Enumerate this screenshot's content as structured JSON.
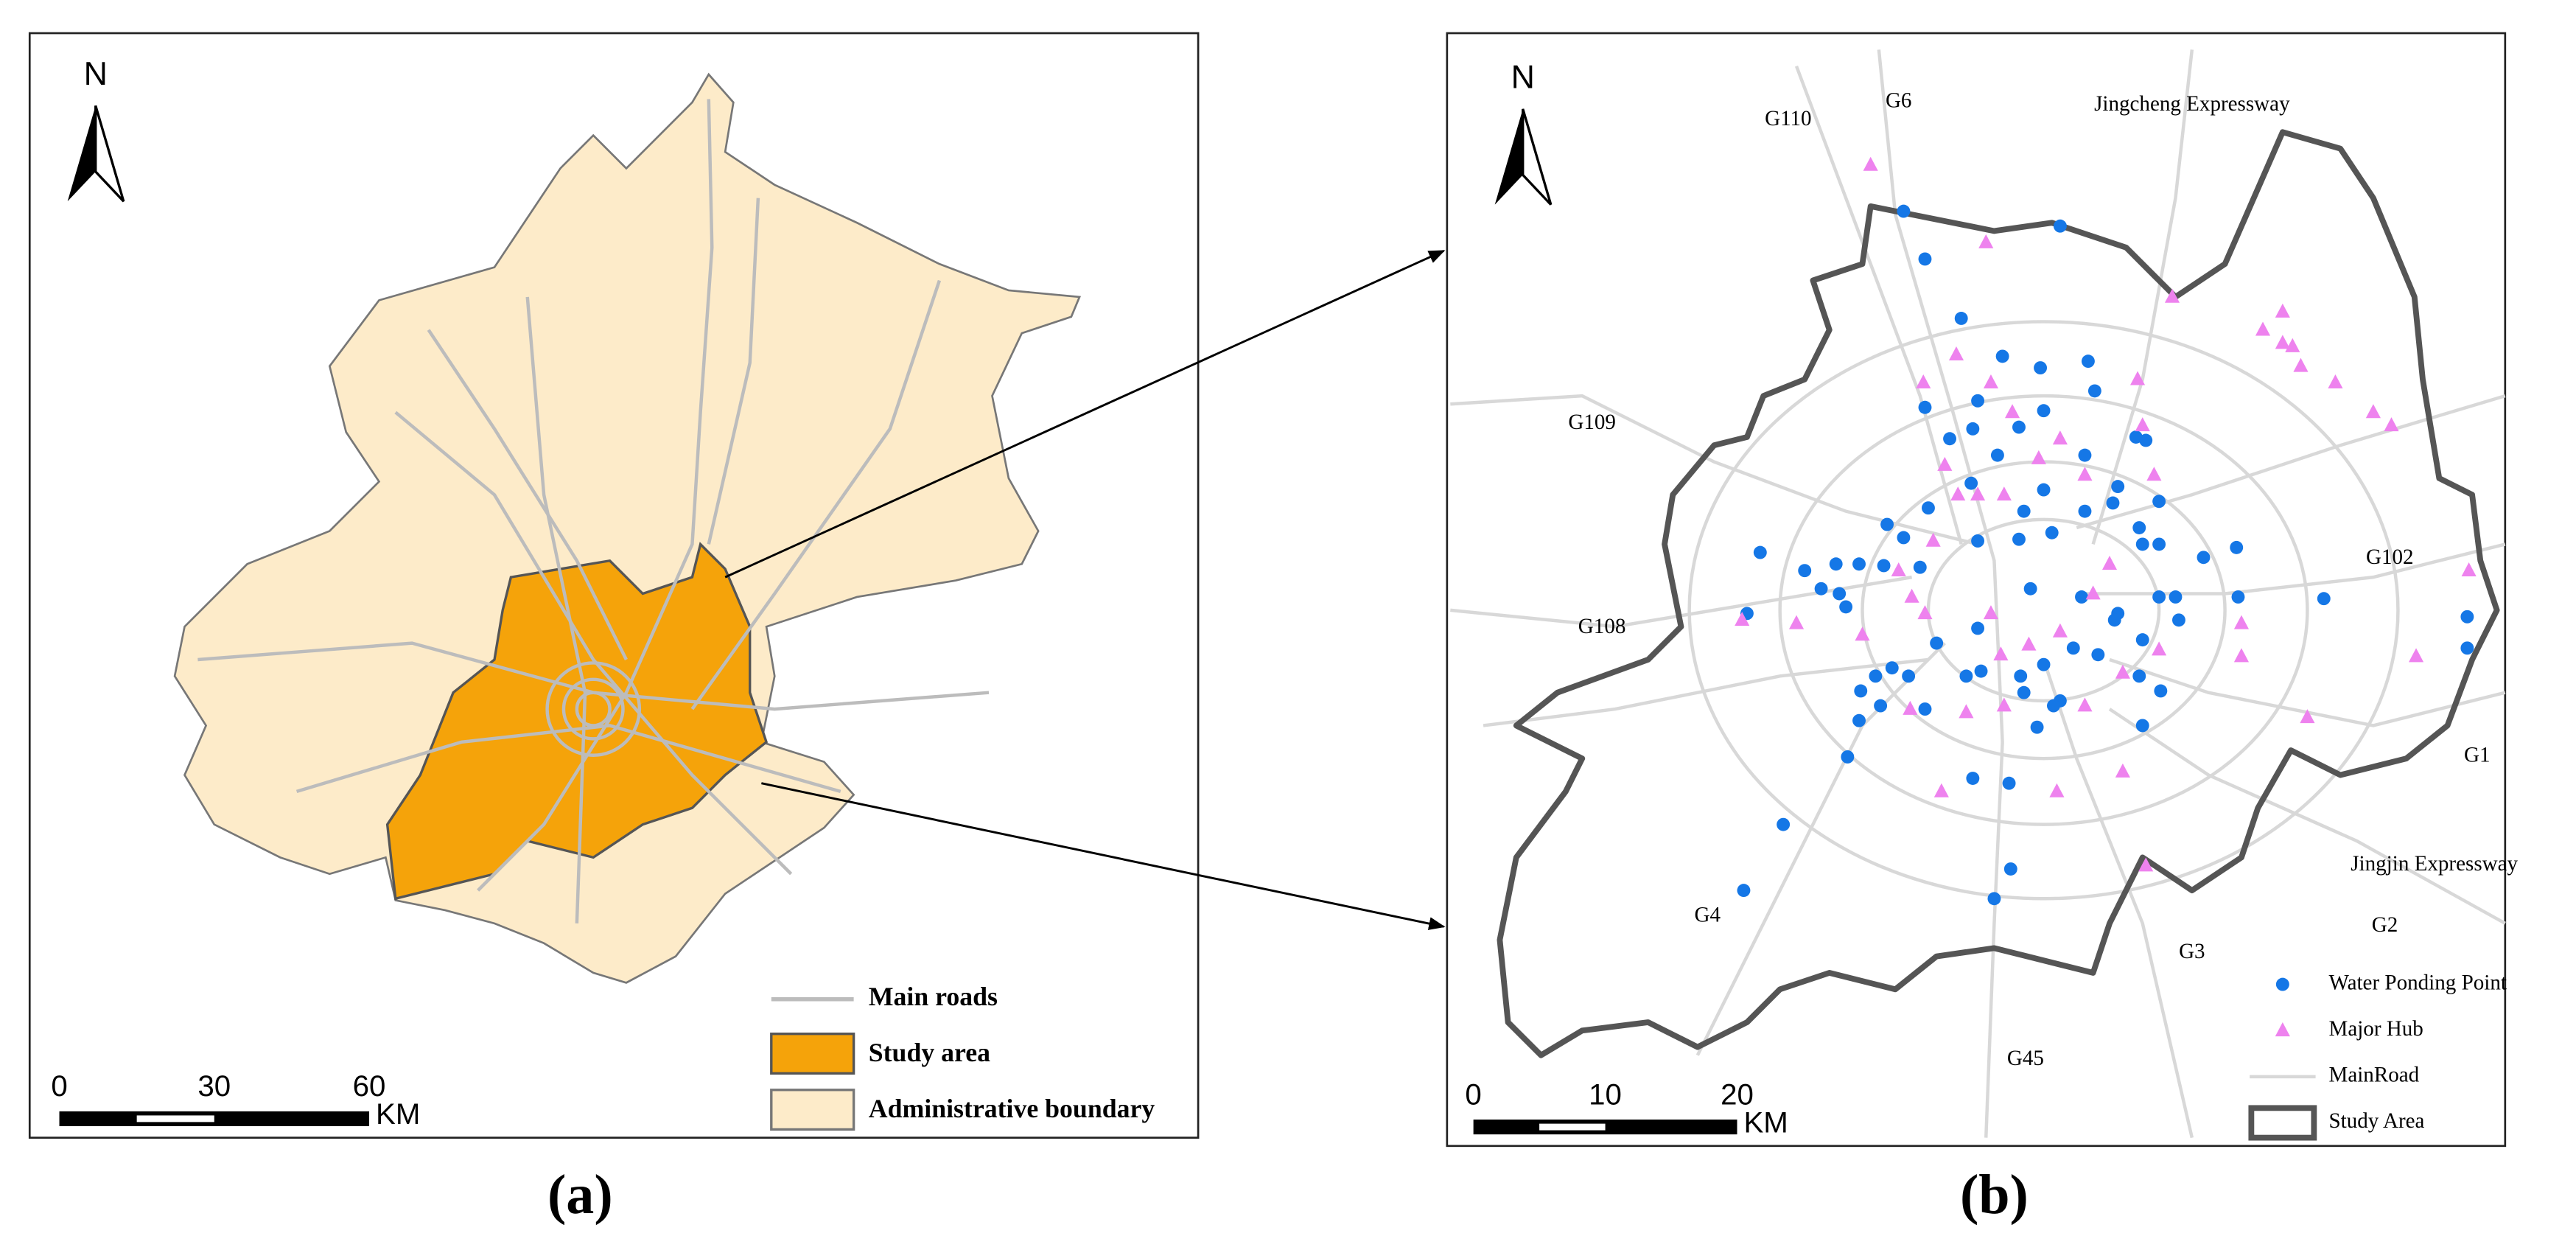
{
  "panel_a": {
    "north": "N",
    "scale": {
      "ticks": [
        0,
        30,
        60
      ],
      "unit": "KM"
    },
    "legend": [
      "Main roads",
      "Study area",
      "Administrative boundary"
    ],
    "caption": "(a)"
  },
  "panel_b": {
    "north": "N",
    "road_labels": [
      "G110",
      "G6",
      "Jingcheng Expressway",
      "G109",
      "G108",
      "G102",
      "G1",
      "Jingjin Expressway",
      "G2",
      "G3",
      "G4",
      "G45"
    ],
    "scale": {
      "ticks": [
        0,
        10,
        20
      ],
      "unit": "KM"
    },
    "legend": [
      "Water Ponding Point",
      "Major Hub",
      "MainRoad",
      "Study Area"
    ],
    "caption": "(b)"
  }
}
